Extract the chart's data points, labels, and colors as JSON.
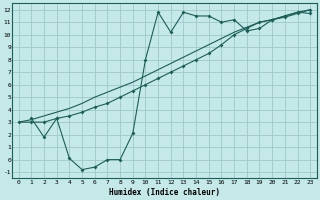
{
  "xlabel": "Humidex (Indice chaleur)",
  "bg_color": "#c5e8e8",
  "grid_color": "#9fc8c8",
  "line_color": "#1a6058",
  "xlim": [
    -0.5,
    23.5
  ],
  "ylim": [
    -1.5,
    12.5
  ],
  "xticks": [
    0,
    1,
    2,
    3,
    4,
    5,
    6,
    7,
    8,
    9,
    10,
    11,
    12,
    13,
    14,
    15,
    16,
    17,
    18,
    19,
    20,
    21,
    22,
    23
  ],
  "yticks": [
    -1,
    0,
    1,
    2,
    3,
    4,
    5,
    6,
    7,
    8,
    9,
    10,
    11,
    12
  ],
  "line1_x": [
    0,
    1,
    2,
    3,
    4,
    5,
    6,
    7,
    8,
    9,
    10,
    11,
    12,
    13,
    14,
    15,
    16,
    17,
    18,
    19,
    20,
    21,
    22,
    23
  ],
  "line1_y": [
    3.0,
    3.0,
    3.0,
    3.3,
    3.5,
    3.8,
    4.2,
    4.5,
    5.0,
    5.5,
    6.0,
    6.5,
    7.0,
    7.5,
    8.0,
    8.5,
    9.2,
    10.0,
    10.5,
    11.0,
    11.2,
    11.4,
    11.7,
    12.0
  ],
  "line2_x": [
    0,
    1,
    2,
    3,
    4,
    5,
    6,
    7,
    8,
    9,
    10,
    11,
    12,
    13,
    14,
    15,
    16,
    17,
    18,
    19,
    20,
    21,
    22,
    23
  ],
  "line2_y": [
    3.0,
    3.2,
    3.5,
    3.8,
    4.1,
    4.5,
    5.0,
    5.4,
    5.8,
    6.2,
    6.7,
    7.2,
    7.7,
    8.2,
    8.7,
    9.2,
    9.7,
    10.2,
    10.6,
    11.0,
    11.2,
    11.5,
    11.8,
    12.0
  ],
  "line3_x": [
    1,
    2,
    3,
    4,
    5,
    6,
    7,
    8,
    9,
    10,
    11,
    12,
    13,
    14,
    15,
    16,
    17,
    18,
    19,
    20,
    21,
    22,
    23
  ],
  "line3_y": [
    3.3,
    1.8,
    3.3,
    0.1,
    -0.8,
    -0.6,
    0.0,
    0.0,
    2.1,
    8.0,
    11.8,
    10.2,
    11.8,
    11.5,
    11.5,
    11.0,
    11.2,
    10.3,
    10.5,
    11.2,
    11.5,
    11.8,
    11.7
  ]
}
